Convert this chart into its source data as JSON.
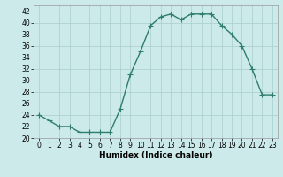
{
  "x": [
    0,
    1,
    2,
    3,
    4,
    5,
    6,
    7,
    8,
    9,
    10,
    11,
    12,
    13,
    14,
    15,
    16,
    17,
    18,
    19,
    20,
    21,
    22,
    23
  ],
  "y": [
    24,
    23,
    22,
    22,
    21,
    21,
    21,
    21,
    25,
    31,
    35,
    39.5,
    41,
    41.5,
    40.5,
    41.5,
    41.5,
    41.5,
    39.5,
    38,
    36,
    32,
    27.5,
    27.5
  ],
  "line_color": "#2e7d6e",
  "marker": "+",
  "markersize": 4,
  "linewidth": 1.0,
  "bg_color": "#cceaea",
  "grid_color": "#aacccc",
  "xlabel": "Humidex (Indice chaleur)",
  "xlim": [
    -0.5,
    23.5
  ],
  "ylim": [
    20,
    43
  ],
  "yticks": [
    20,
    22,
    24,
    26,
    28,
    30,
    32,
    34,
    36,
    38,
    40,
    42
  ],
  "xticks": [
    0,
    1,
    2,
    3,
    4,
    5,
    6,
    7,
    8,
    9,
    10,
    11,
    12,
    13,
    14,
    15,
    16,
    17,
    18,
    19,
    20,
    21,
    22,
    23
  ],
  "xlabel_fontsize": 6.5,
  "tick_labelsize": 5.5
}
